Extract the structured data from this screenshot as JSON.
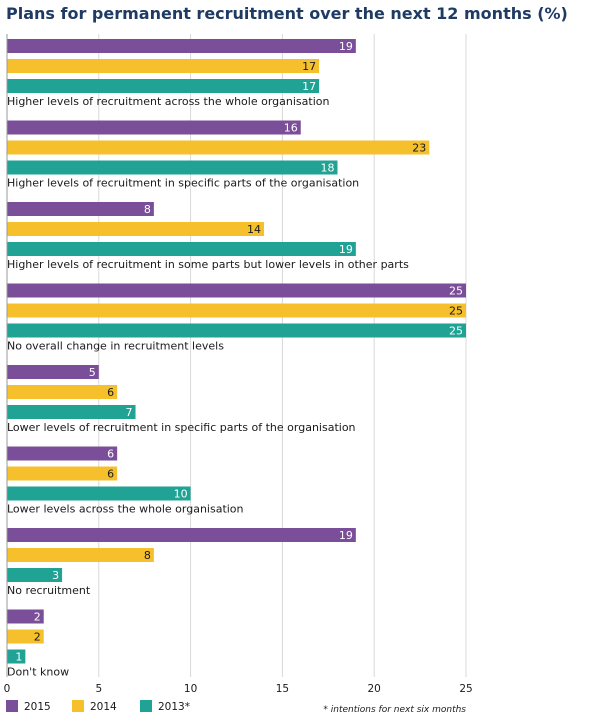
{
  "chart_data": {
    "type": "bar",
    "orientation": "horizontal",
    "title": "Plans for permanent recruitment over the next 12 months (%)",
    "categories": [
      "Higher levels of recruitment across the whole organisation",
      "Higher levels of recruitment in specific parts of the organisation",
      "Higher levels of recruitment in some parts but lower levels in other parts",
      "No overall change in recruitment levels",
      "Lower levels of recruitment in specific parts of the organisation",
      "Lower levels across the whole organisation",
      "No recruitment",
      "Don't know"
    ],
    "series": [
      {
        "name": "2015",
        "color": "#7b4e9a",
        "values": [
          19,
          16,
          8,
          25,
          5,
          6,
          19,
          2
        ]
      },
      {
        "name": "2014",
        "color": "#f5c02b",
        "values": [
          17,
          23,
          14,
          25,
          6,
          6,
          8,
          2
        ]
      },
      {
        "name": "2013*",
        "color": "#20a294",
        "values": [
          17,
          18,
          19,
          25,
          7,
          10,
          3,
          1
        ]
      }
    ],
    "xlim": [
      0,
      25
    ],
    "xticks": [
      0,
      5,
      10,
      15,
      20,
      25
    ],
    "grid": true,
    "legend": "bottom-left",
    "footnote": "* intentions for next six months"
  }
}
